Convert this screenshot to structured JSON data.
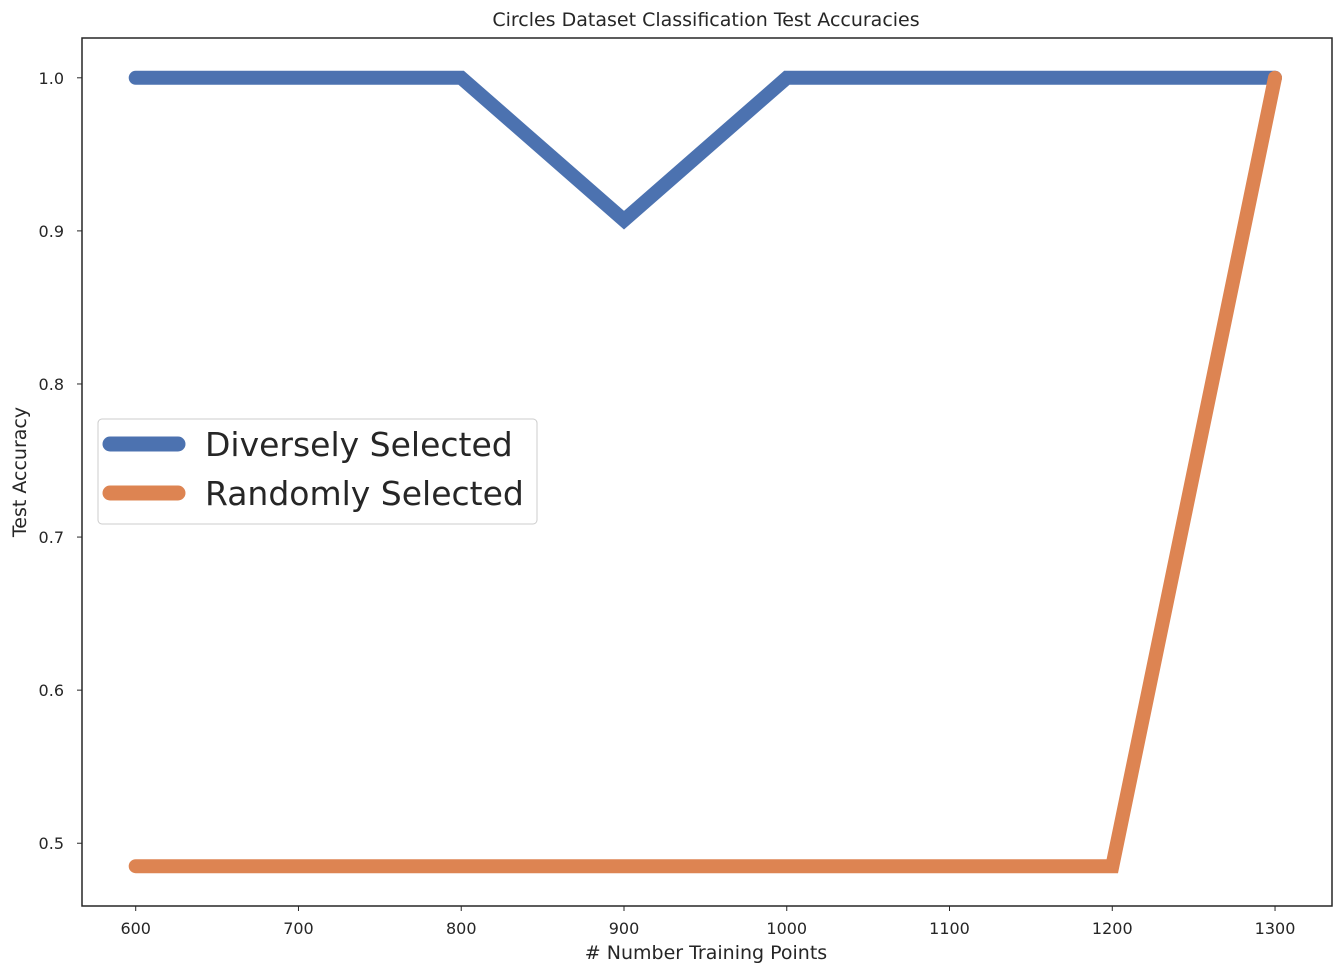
{
  "chart_data": {
    "type": "line",
    "title": "Circles Dataset Classification Test Accuracies",
    "xlabel": "# Number Training Points",
    "ylabel": "Test Accuracy",
    "x": [
      600,
      700,
      800,
      900,
      1000,
      1100,
      1200,
      1300
    ],
    "xticks": [
      600,
      700,
      800,
      900,
      1000,
      1100,
      1200,
      1300
    ],
    "xtick_labels": [
      "600",
      "700",
      "800",
      "900",
      "1000",
      "1100",
      "1200",
      "1300"
    ],
    "yticks": [
      0.5,
      0.6,
      0.7,
      0.8,
      0.9,
      1.0
    ],
    "ytick_labels": [
      "0.5",
      "0.6",
      "0.7",
      "0.8",
      "0.9",
      "1.0"
    ],
    "xlim": [
      567,
      1335
    ],
    "ylim": [
      0.459,
      1.026
    ],
    "grid": false,
    "legend_position": "center-left",
    "series": [
      {
        "name": "Diversely Selected",
        "color": "#4c72b0",
        "values": [
          1.0,
          1.0,
          1.0,
          0.907,
          1.0,
          1.0,
          1.0,
          1.0
        ]
      },
      {
        "name": "Randomly Selected",
        "color": "#dd8452",
        "values": [
          0.485,
          0.485,
          0.485,
          0.485,
          0.485,
          0.485,
          0.485,
          1.0
        ]
      }
    ]
  }
}
